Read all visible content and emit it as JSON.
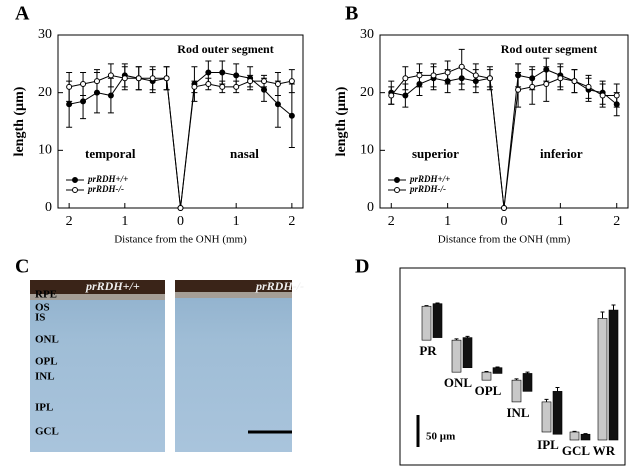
{
  "chart_data": [
    {
      "type": "line",
      "panel_label": "A",
      "title": "Rod outer segment",
      "annotations": [
        "temporal",
        "nasal"
      ],
      "xlabel": "Distance from the ONH (mm)",
      "ylabel": "length (µm)",
      "x": [
        -2,
        -1.75,
        -1.5,
        -1.25,
        -1,
        -0.75,
        -0.5,
        -0.25,
        0,
        0.25,
        0.5,
        0.75,
        1,
        1.25,
        1.5,
        1.75,
        2
      ],
      "series": [
        {
          "name": "prRDH+/+",
          "color": "#000000",
          "marker_fill": "#000000",
          "values": [
            18,
            18.5,
            20,
            19.5,
            23,
            22.5,
            22,
            22.5,
            0,
            21.5,
            23.5,
            23.5,
            23,
            22.5,
            20.5,
            18,
            16
          ],
          "errors": [
            4,
            3,
            3.5,
            3,
            2,
            2,
            2,
            2,
            0,
            3,
            2,
            2,
            2,
            2,
            2,
            4,
            5.5
          ]
        },
        {
          "name": "prRDH-/-",
          "color": "#000000",
          "marker_fill": "#ffffff",
          "values": [
            21,
            21.5,
            22,
            23,
            22.5,
            22.5,
            22.5,
            22.5,
            0,
            21,
            21.5,
            21,
            21,
            22,
            22,
            21.5,
            22
          ],
          "errors": [
            2.5,
            2,
            2,
            2,
            2,
            2,
            2,
            2,
            0,
            1,
            1,
            1,
            1,
            1,
            1,
            2,
            2
          ]
        }
      ],
      "xlim": [
        -2.2,
        2.2
      ],
      "ylim": [
        0,
        30
      ],
      "xticks": [
        {
          "value": -2,
          "label": "2"
        },
        {
          "value": -1,
          "label": "1"
        },
        0,
        1,
        2
      ],
      "yticks": [
        0,
        10,
        20,
        30
      ],
      "legend": "lower left"
    },
    {
      "type": "line",
      "panel_label": "B",
      "title": "Rod outer segment",
      "annotations": [
        "superior",
        "inferior"
      ],
      "xlabel": "Distance from the ONH (mm)",
      "ylabel": "length (µm)",
      "x": [
        -2,
        -1.75,
        -1.5,
        -1.25,
        -1,
        -0.75,
        -0.5,
        -0.25,
        0,
        0.25,
        0.5,
        0.75,
        1,
        1.25,
        1.5,
        1.75,
        2
      ],
      "series": [
        {
          "name": "prRDH+/+",
          "color": "#000000",
          "marker_fill": "#000000",
          "values": [
            20,
            19.5,
            21.5,
            22.5,
            22,
            22.5,
            22,
            22.5,
            0,
            23,
            22.5,
            24,
            23,
            22,
            20.5,
            20,
            18
          ],
          "errors": [
            2,
            2,
            2,
            2,
            2,
            2,
            2,
            2,
            0,
            2,
            2,
            2,
            2,
            2,
            2,
            2,
            2
          ]
        },
        {
          "name": "prRDH-/-",
          "color": "#000000",
          "marker_fill": "#ffffff",
          "values": [
            19.5,
            22.5,
            23,
            23,
            23.5,
            24.5,
            23,
            22.5,
            0,
            20.5,
            21,
            21.5,
            22.5,
            22,
            21,
            19.5,
            19.5
          ],
          "errors": [
            1.5,
            2,
            2,
            2,
            2,
            3,
            2,
            1.5,
            0,
            3,
            3,
            3,
            2,
            2,
            2,
            2,
            2
          ]
        }
      ],
      "xlim": [
        -2.2,
        2.2
      ],
      "ylim": [
        0,
        30
      ],
      "xticks": [
        {
          "value": -2,
          "label": "2"
        },
        {
          "value": -1,
          "label": "1"
        },
        0,
        1,
        2
      ],
      "yticks": [
        0,
        10,
        20,
        30
      ],
      "legend": "lower left"
    },
    {
      "type": "bar",
      "panel_label": "D",
      "categories": [
        "PR",
        "ONL",
        "OPL",
        "INL",
        "IPL",
        "GCL",
        "WR"
      ],
      "series": [
        {
          "color": "#c8c8c8",
          "values": [
            53,
            50,
            12.5,
            34,
            47,
            12.5,
            190
          ],
          "errors": [
            1,
            2,
            1,
            2,
            4,
            1,
            10
          ]
        },
        {
          "color": "#111111",
          "values": [
            53,
            47,
            9,
            28,
            67,
            9,
            203
          ],
          "errors": [
            1,
            2,
            1,
            2,
            6,
            1,
            8
          ]
        }
      ],
      "scale_bar": {
        "value": 50,
        "label": "50 µm"
      }
    }
  ],
  "panel_c": {
    "panel_label": "C",
    "images": [
      "prRDH+/+",
      "prRDH-/-"
    ],
    "layers": [
      "RPE",
      "OS",
      "IS",
      "ONL",
      "OPL",
      "INL",
      "IPL",
      "GCL"
    ]
  }
}
